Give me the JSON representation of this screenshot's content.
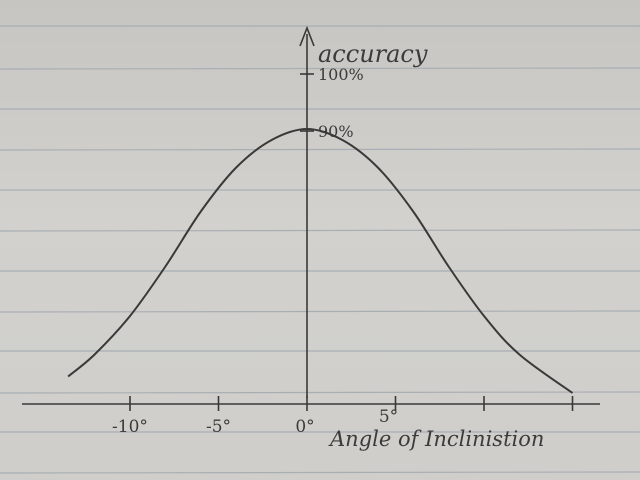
{
  "chart_data": {
    "type": "line",
    "title": "",
    "ylabel": "accuracy",
    "xlabel": "Angle of Inclinistion",
    "x_ticks": [
      {
        "value": -10,
        "label": "-10°"
      },
      {
        "value": -5,
        "label": "-5°"
      },
      {
        "value": 0,
        "label": "0°"
      },
      {
        "value": 5,
        "label": "5°"
      },
      {
        "value": 10,
        "label": ""
      },
      {
        "value": 15,
        "label": ""
      }
    ],
    "y_ticks": [
      {
        "value": 100,
        "label": "100%"
      },
      {
        "value": 90,
        "label": "90%"
      }
    ],
    "xlim": [
      -15,
      15
    ],
    "ylim": [
      40,
      115
    ],
    "grid": false,
    "series": [
      {
        "x": [
          -13.5,
          -12,
          -10,
          -8,
          -6,
          -4,
          -2,
          0,
          2,
          4,
          6,
          8,
          10,
          12,
          15
        ],
        "values": [
          45,
          49,
          56,
          65,
          75,
          83,
          88,
          90,
          88,
          83,
          75,
          65,
          56,
          49,
          42
        ]
      }
    ],
    "colors": {
      "ink": "#3a3937",
      "paper": "#cfcecb",
      "ruled_line": "#a9aeb4"
    }
  }
}
